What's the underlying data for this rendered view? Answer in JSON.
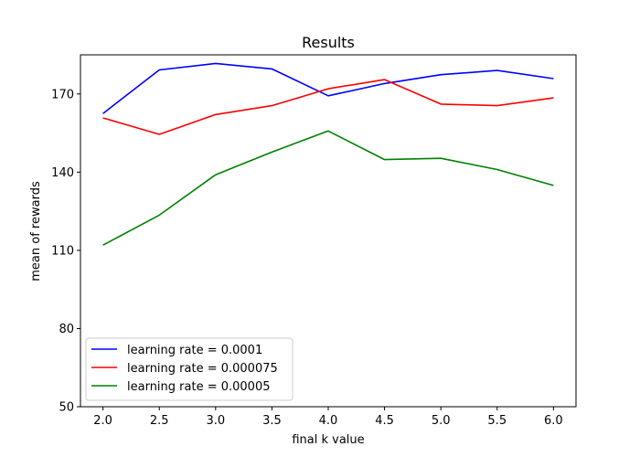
{
  "chart_data": {
    "type": "line",
    "title": "Results",
    "xlabel": "final k value",
    "ylabel": "mean of rewards",
    "x": [
      2.0,
      2.5,
      3.0,
      3.5,
      4.0,
      4.5,
      5.0,
      5.5,
      6.0
    ],
    "xticks": [
      "2.0",
      "2.5",
      "3.0",
      "3.5",
      "4.0",
      "4.5",
      "5.0",
      "5.5",
      "6.0"
    ],
    "yticks": [
      50,
      80,
      110,
      140,
      170
    ],
    "xlim": [
      1.8,
      6.2
    ],
    "ylim": [
      50,
      185
    ],
    "grid": false,
    "legend_position": "bottom-left",
    "series": [
      {
        "name": "learning rate = 0.0001",
        "color": "#0000ff",
        "values": [
          162.5,
          179.2,
          181.7,
          179.6,
          169.3,
          174.0,
          177.4,
          179.0,
          175.9
        ]
      },
      {
        "name": "learning rate = 0.000075",
        "color": "#ff0000",
        "values": [
          160.8,
          154.5,
          162.1,
          165.5,
          172.0,
          175.5,
          166.1,
          165.5,
          168.5
        ]
      },
      {
        "name": "learning rate = 0.00005",
        "color": "#008000",
        "values": [
          112.0,
          123.5,
          139.0,
          147.7,
          155.8,
          144.8,
          145.3,
          141.0,
          134.9
        ]
      }
    ]
  }
}
